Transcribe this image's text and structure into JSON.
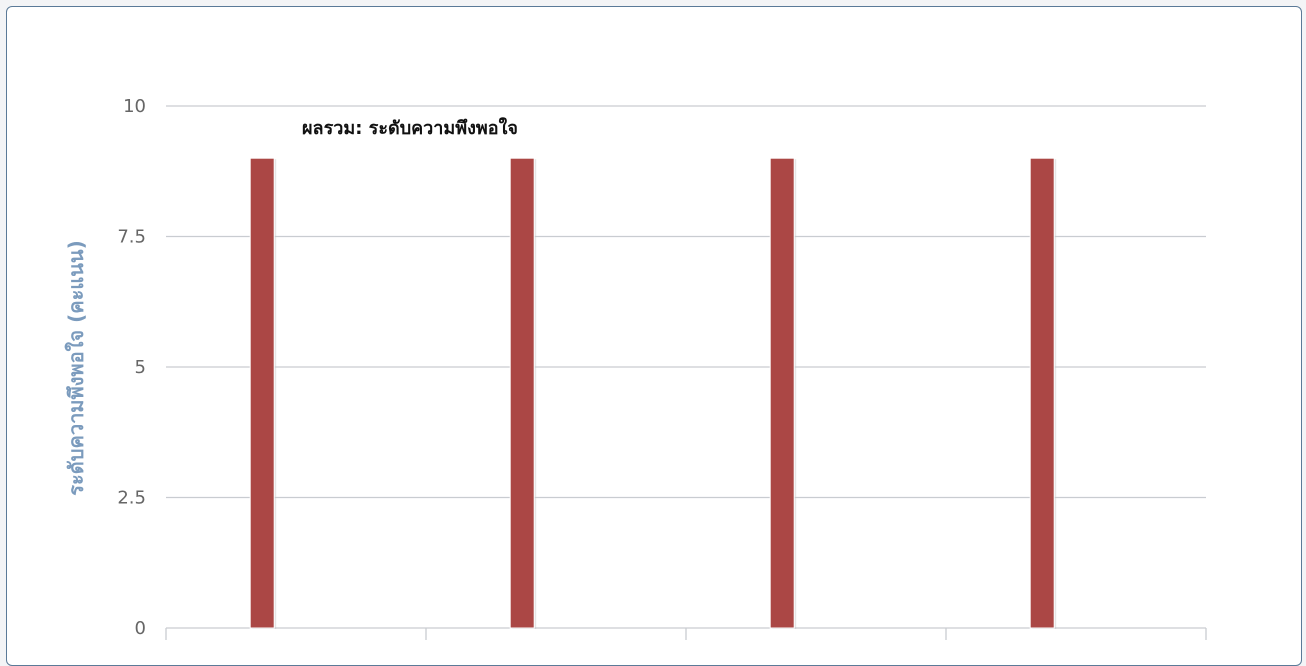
{
  "chart_data": {
    "type": "bar",
    "title": "ผลรวม: ระดับความพึงพอใจ",
    "ylabel": "ระดับความพึงพอใจ (คะแนน)",
    "xlabel": "",
    "ylim": [
      0,
      10
    ],
    "yticks": [
      "0",
      "2.5",
      "5",
      "7.5",
      "10"
    ],
    "categories": [
      "",
      "",
      "",
      ""
    ],
    "values": [
      9,
      9,
      9,
      9
    ],
    "bar_color": "#ab4745",
    "grid": true
  }
}
